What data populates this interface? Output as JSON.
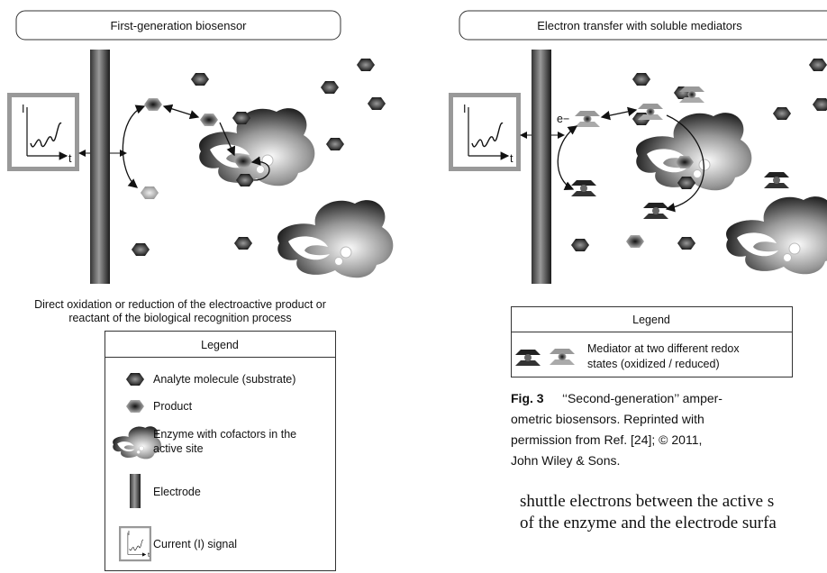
{
  "left_panel": {
    "title": "First-generation biosensor",
    "caption": [
      "Direct oxidation or reduction of the electroactive product or",
      "reactant of the biological recognition process"
    ],
    "legend": {
      "title": "Legend",
      "items": [
        [
          "Analyte molecule (substrate)"
        ],
        [
          "Product"
        ],
        [
          "Enzyme with cofactors in the",
          "active site"
        ],
        [
          "Electrode"
        ],
        [
          "Current (I) signal"
        ]
      ]
    }
  },
  "signal_axis": {
    "y": "I",
    "x": "t"
  },
  "right_panel": {
    "title": "Electron transfer with soluble mediators",
    "electron_label": "e−",
    "legend": {
      "title": "Legend",
      "items": [
        [
          "Mediator at two different redox",
          "states (oxidized / reduced)"
        ]
      ]
    }
  },
  "figure_caption": {
    "label": "Fig. 3",
    "lines": [
      "‘‘Second-generation’’ amper-",
      "ometric biosensors. Reprinted with",
      "permission from Ref. [24]; © 2011,",
      "John Wiley & Sons."
    ]
  },
  "body_text": [
    "shuttle electrons between the active s",
    "of the enzyme and the electrode surfa"
  ]
}
